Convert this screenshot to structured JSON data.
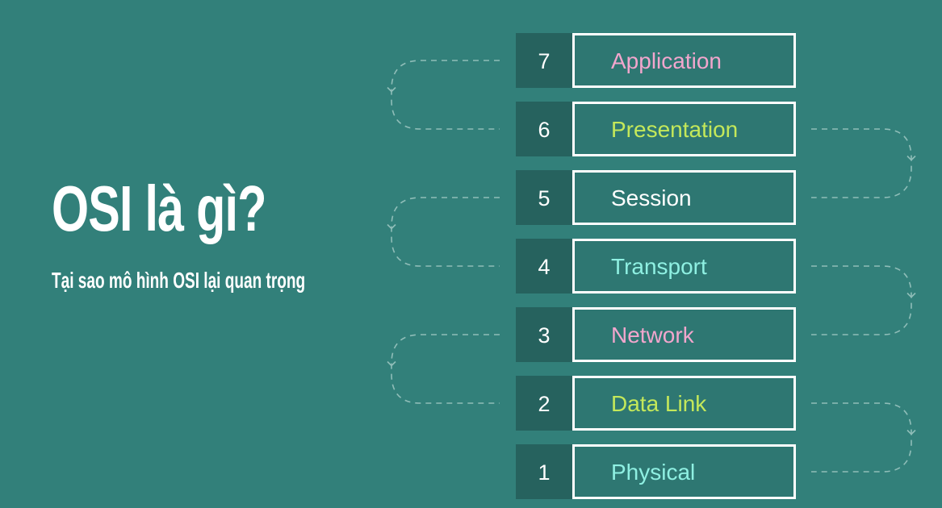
{
  "title": "OSI là gì?",
  "subtitle": "Tại sao mô hình OSI lại quan trọng",
  "colors": {
    "background": "#32807a",
    "number_box": "#26625e",
    "name_box": "#2e7772",
    "box_border": "#ffffff",
    "connector": "#8fbdb8"
  },
  "layers": [
    {
      "number": "7",
      "name": "Application",
      "color": "#f2a6cd"
    },
    {
      "number": "6",
      "name": "Presentation",
      "color": "#c4e85a"
    },
    {
      "number": "5",
      "name": "Session",
      "color": "#ffffff"
    },
    {
      "number": "4",
      "name": "Transport",
      "color": "#8ff0e2"
    },
    {
      "number": "3",
      "name": "Network",
      "color": "#f2a6cd"
    },
    {
      "number": "2",
      "name": "Data Link",
      "color": "#c4e85a"
    },
    {
      "number": "1",
      "name": "Physical",
      "color": "#8ff0e2"
    }
  ]
}
